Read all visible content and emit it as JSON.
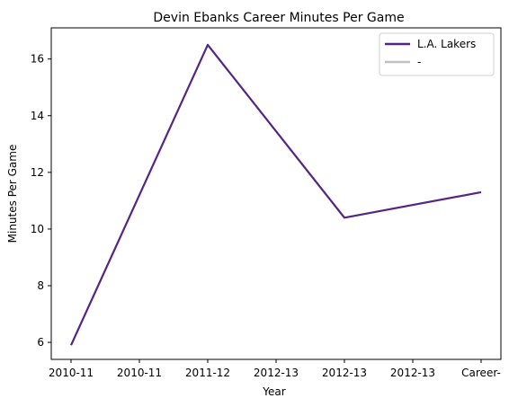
{
  "chart_data": {
    "type": "line",
    "title": "Devin Ebanks Career Minutes Per Game",
    "xlabel": "Year",
    "ylabel": "Minutes Per Game",
    "categories": [
      "2010-11",
      "2010-11",
      "2011-12",
      "2012-13",
      "2012-13",
      "2012-13",
      "Career-"
    ],
    "ylim": [
      5.4,
      17.1
    ],
    "yticks": [
      6,
      8,
      10,
      12,
      14,
      16
    ],
    "grid": false,
    "legend_position": "top-right",
    "series": [
      {
        "name": "L.A. Lakers",
        "color": "#552583",
        "points": [
          {
            "x": "2010-11",
            "y": 5.9
          },
          {
            "x": "2011-12",
            "y": 16.5
          },
          {
            "x": "2012-13",
            "y": 10.4
          },
          {
            "x": "Career-",
            "y": 11.3
          }
        ]
      },
      {
        "name": "-",
        "color": "#c0c0c0",
        "points": []
      }
    ]
  }
}
